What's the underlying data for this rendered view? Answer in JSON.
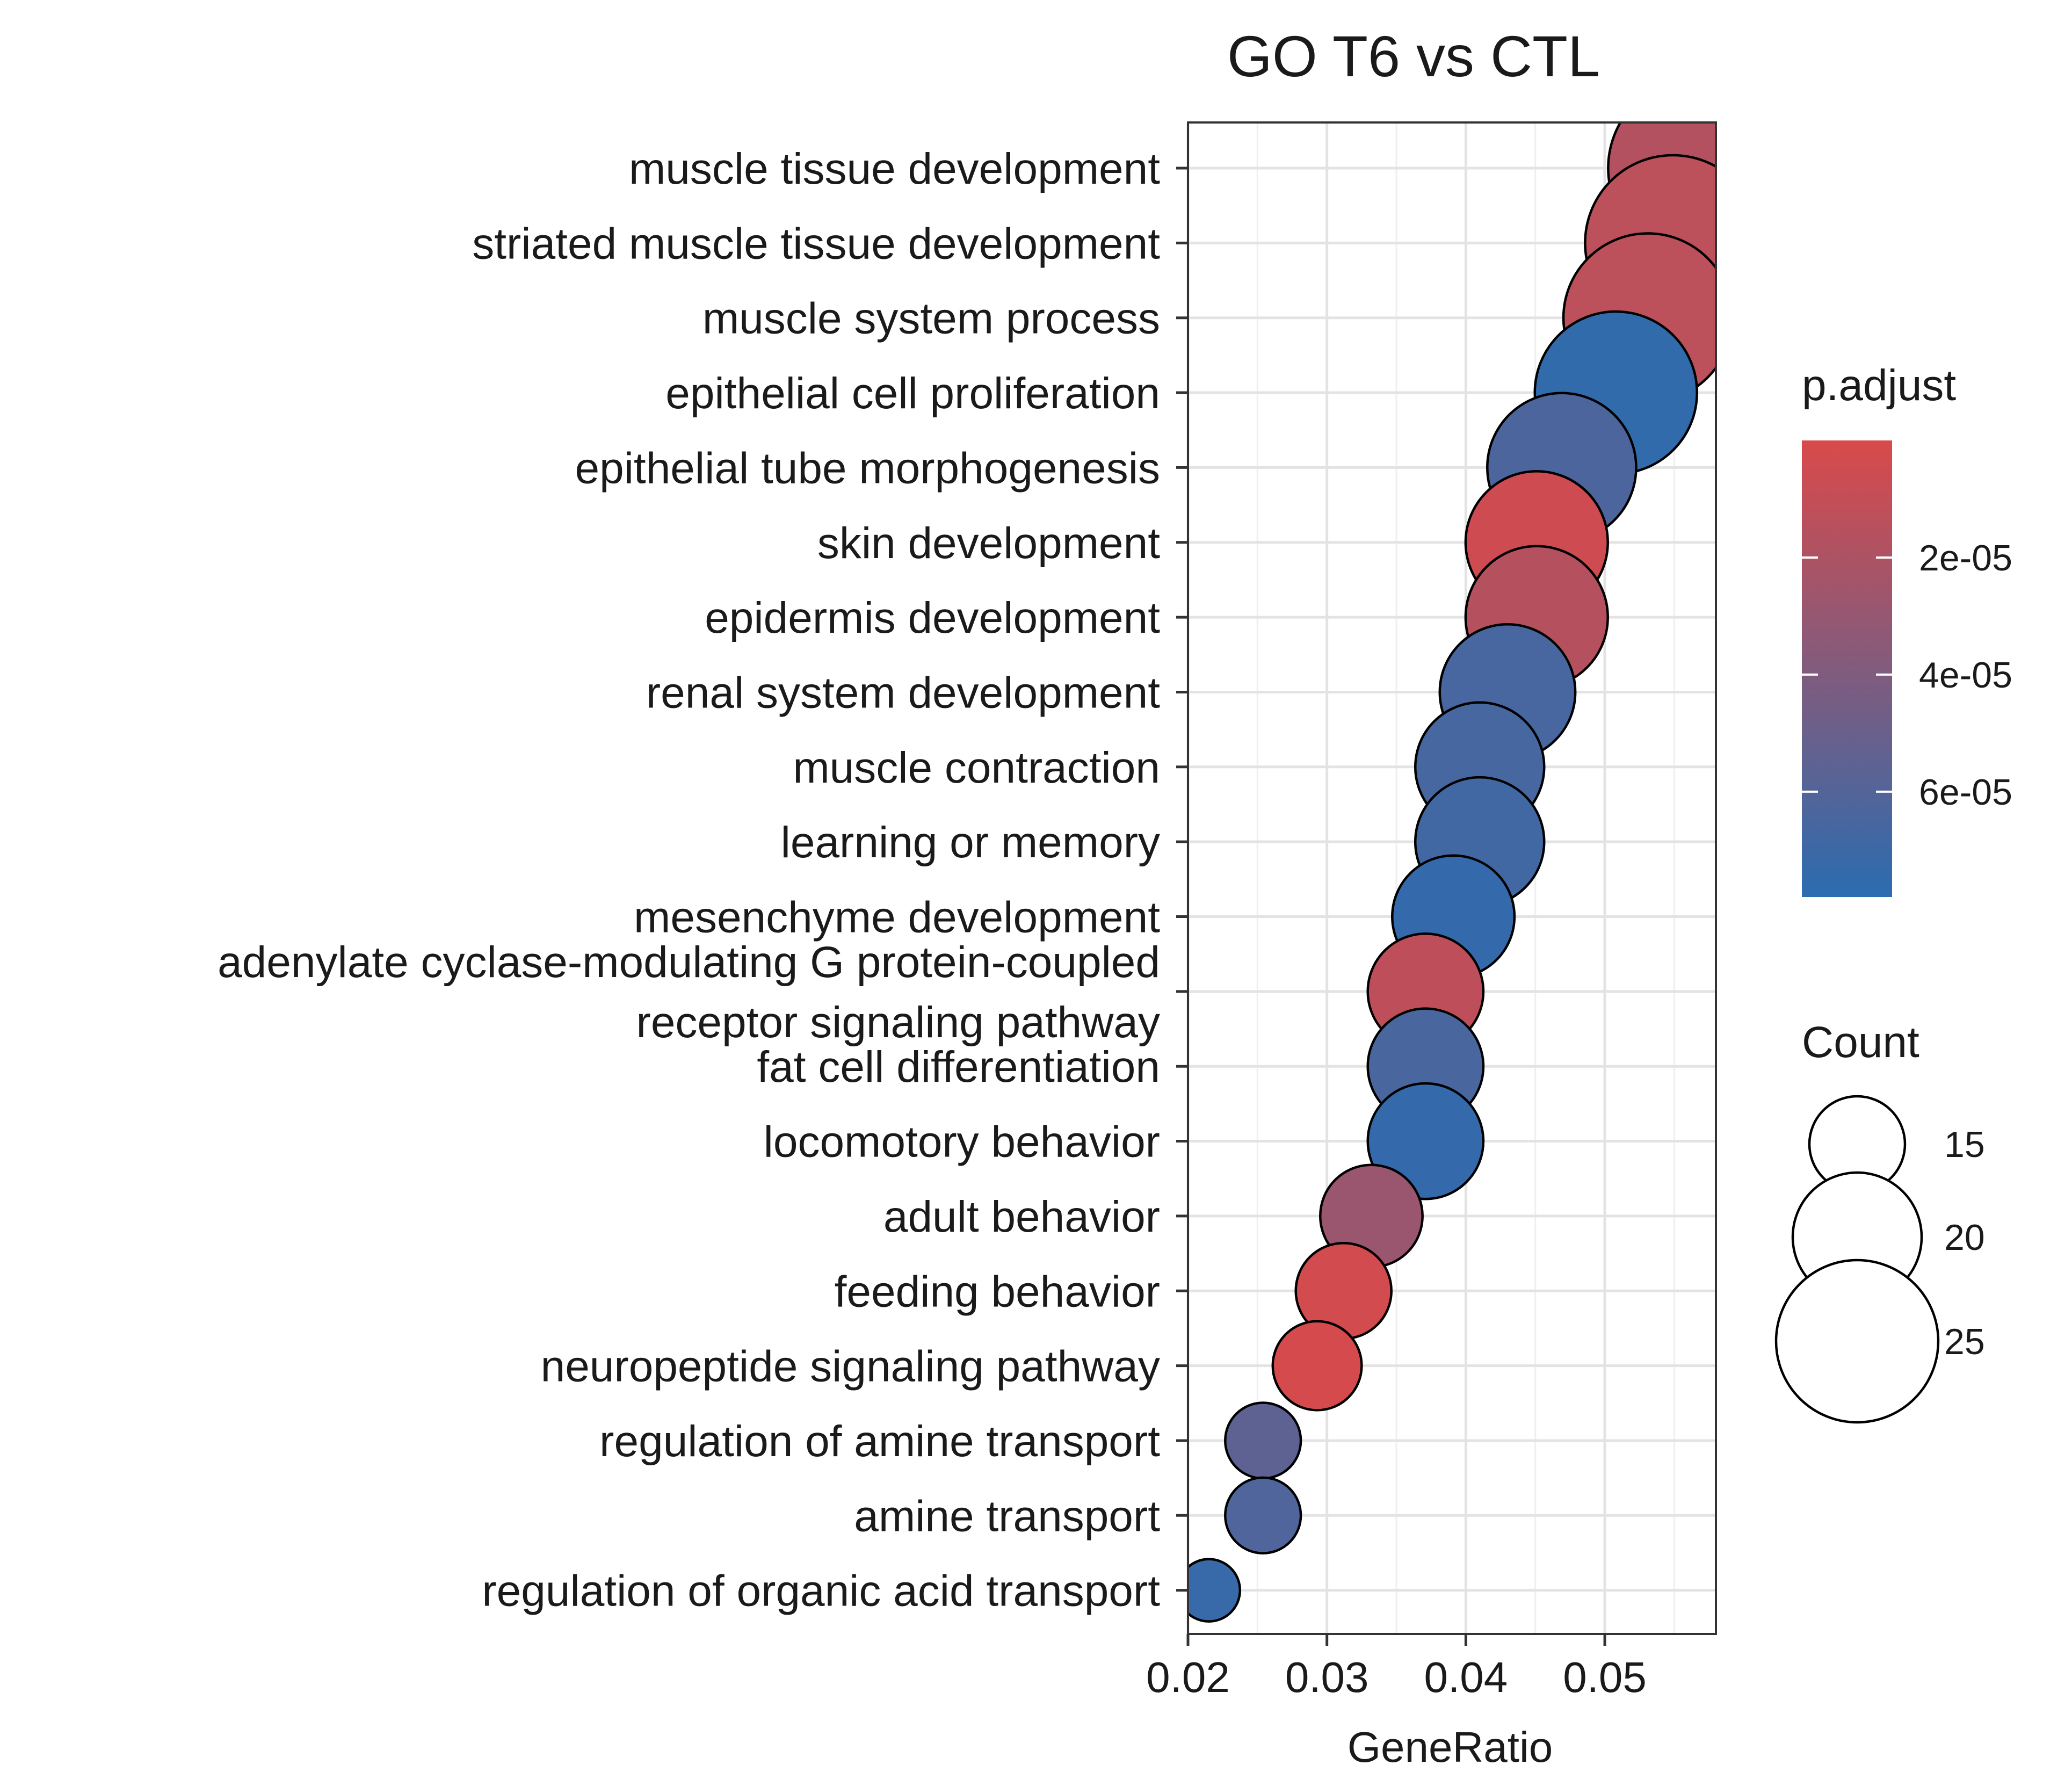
{
  "chart_data": {
    "type": "scatter",
    "title": "GO T6 vs CTL",
    "xlabel": "GeneRatio",
    "ylabel": "",
    "xlim": [
      0.02,
      0.058
    ],
    "xticks": [
      0.02,
      0.03,
      0.04,
      0.05
    ],
    "xtick_labels": [
      "0.02",
      "0.03",
      "0.04",
      "0.05"
    ],
    "grid": true,
    "legend_position": "right",
    "categories": [
      "muscle tissue development",
      "striated muscle tissue development",
      "muscle system process",
      "epithelial cell proliferation",
      "epithelial tube morphogenesis",
      "skin development",
      "epidermis development",
      "renal system development",
      "muscle contraction",
      "learning or memory",
      "mesenchyme development",
      "adenylate cyclase-modulating G protein-coupled receptor signaling pathway",
      "fat cell differentiation",
      "locomotory behavior",
      "adult behavior",
      "feeding behavior",
      "neuropeptide signaling pathway",
      "regulation of amine transport",
      "amine transport",
      "regulation of organic acid transport"
    ],
    "category_labels": [
      [
        "muscle tissue development"
      ],
      [
        "striated muscle tissue development"
      ],
      [
        "muscle system process"
      ],
      [
        "epithelial cell proliferation"
      ],
      [
        "epithelial tube morphogenesis"
      ],
      [
        "skin development"
      ],
      [
        "epidermis development"
      ],
      [
        "renal system development"
      ],
      [
        "muscle contraction"
      ],
      [
        "learning or memory"
      ],
      [
        "mesenchyme development"
      ],
      [
        "adenylate cyclase-modulating G protein-coupled",
        "receptor signaling pathway"
      ],
      [
        "fat cell differentiation"
      ],
      [
        "locomotory behavior"
      ],
      [
        "adult behavior"
      ],
      [
        "feeding behavior"
      ],
      [
        "neuropeptide signaling pathway"
      ],
      [
        "regulation of amine transport"
      ],
      [
        "amine transport"
      ],
      [
        "regulation of organic acid transport"
      ]
    ],
    "points": [
      {
        "term": "muscle tissue development",
        "gene_ratio": 0.0568,
        "count": 28,
        "p_adjust": 1.7e-05
      },
      {
        "term": "striated muscle tissue development",
        "gene_ratio": 0.0549,
        "count": 27,
        "p_adjust": 1.3e-05
      },
      {
        "term": "muscle system process",
        "gene_ratio": 0.0531,
        "count": 26,
        "p_adjust": 1.3e-05
      },
      {
        "term": "epithelial cell proliferation",
        "gene_ratio": 0.0508,
        "count": 25,
        "p_adjust": 7.5e-05
      },
      {
        "term": "epithelial tube morphogenesis",
        "gene_ratio": 0.0469,
        "count": 23,
        "p_adjust": 6.3e-05
      },
      {
        "term": "skin development",
        "gene_ratio": 0.0451,
        "count": 22,
        "p_adjust": 5e-06
      },
      {
        "term": "epidermis development",
        "gene_ratio": 0.0451,
        "count": 22,
        "p_adjust": 1.6e-05
      },
      {
        "term": "renal system development",
        "gene_ratio": 0.043,
        "count": 21,
        "p_adjust": 6.5e-05
      },
      {
        "term": "muscle contraction",
        "gene_ratio": 0.041,
        "count": 20,
        "p_adjust": 6.6e-05
      },
      {
        "term": "learning or memory",
        "gene_ratio": 0.041,
        "count": 20,
        "p_adjust": 6.8e-05
      },
      {
        "term": "mesenchyme development",
        "gene_ratio": 0.0391,
        "count": 19,
        "p_adjust": 7.4e-05
      },
      {
        "term": "adenylate cyclase-modulating G protein-coupled receptor signaling pathway",
        "gene_ratio": 0.0371,
        "count": 18,
        "p_adjust": 1.2e-05
      },
      {
        "term": "fat cell differentiation",
        "gene_ratio": 0.0371,
        "count": 18,
        "p_adjust": 6.4e-05
      },
      {
        "term": "locomotory behavior",
        "gene_ratio": 0.0371,
        "count": 18,
        "p_adjust": 7.4e-05
      },
      {
        "term": "adult behavior",
        "gene_ratio": 0.0332,
        "count": 16,
        "p_adjust": 2.8e-05
      },
      {
        "term": "feeding behavior",
        "gene_ratio": 0.0312,
        "count": 15,
        "p_adjust": 3e-06
      },
      {
        "term": "neuropeptide signaling pathway",
        "gene_ratio": 0.0293,
        "count": 14,
        "p_adjust": 2e-06
      },
      {
        "term": "regulation of amine transport",
        "gene_ratio": 0.0254,
        "count": 12,
        "p_adjust": 5.5e-05
      },
      {
        "term": "amine transport",
        "gene_ratio": 0.0254,
        "count": 12,
        "p_adjust": 6.2e-05
      },
      {
        "term": "regulation of organic acid transport",
        "gene_ratio": 0.0215,
        "count": 10,
        "p_adjust": 7.2e-05
      }
    ],
    "color_legend": {
      "title": "p.adjust",
      "domain": [
        0.0,
        7.8e-05
      ],
      "low_color": "#d94a4a",
      "high_color": "#2b6cb0",
      "ticks": [
        2e-05,
        4e-05,
        6e-05
      ],
      "tick_labels": [
        "2e-05",
        "4e-05",
        "6e-05"
      ]
    },
    "size_legend": {
      "title": "Count",
      "values": [
        15,
        20,
        25
      ],
      "labels": [
        "15",
        "20",
        "25"
      ]
    }
  }
}
